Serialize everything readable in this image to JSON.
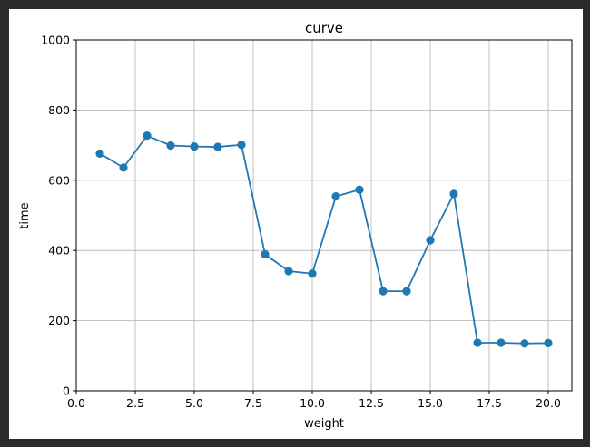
{
  "chart_data": {
    "type": "line",
    "title": "curve",
    "xlabel": "weight",
    "ylabel": "time",
    "xlim": [
      0,
      21
    ],
    "ylim": [
      0,
      1000
    ],
    "xticks": [
      0.0,
      2.5,
      5.0,
      7.5,
      10.0,
      12.5,
      15.0,
      17.5,
      20.0
    ],
    "xtick_labels": [
      "0.0",
      "2.5",
      "5.0",
      "7.5",
      "10.0",
      "12.5",
      "15.0",
      "17.5",
      "20.0"
    ],
    "yticks": [
      0,
      200,
      400,
      600,
      800,
      1000
    ],
    "ytick_labels": [
      "0",
      "200",
      "400",
      "600",
      "800",
      "1000"
    ],
    "grid": true,
    "markers": true,
    "color": "#1f77b4",
    "series": [
      {
        "x": [
          1,
          2,
          3,
          4,
          5,
          6,
          7,
          8,
          9,
          10,
          11,
          12,
          13,
          14,
          15,
          16,
          17,
          18,
          19,
          20
        ],
        "values": [
          676,
          636,
          727,
          699,
          696,
          695,
          701,
          389,
          341,
          334,
          554,
          573,
          284,
          284,
          429,
          561,
          137,
          137,
          135,
          136
        ]
      }
    ]
  }
}
